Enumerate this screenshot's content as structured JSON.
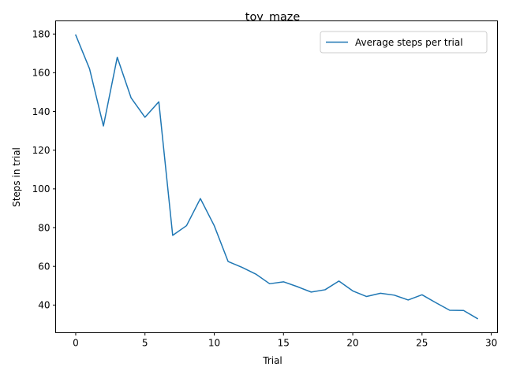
{
  "chart_data": {
    "type": "line",
    "title": "toy_maze",
    "xlabel": "Trial",
    "ylabel": "Steps in trial",
    "xlim": [
      -1.45,
      30.45
    ],
    "ylim": [
      25.7,
      186.8
    ],
    "xticks": [
      0,
      5,
      10,
      15,
      20,
      25,
      30
    ],
    "yticks": [
      40,
      60,
      80,
      100,
      120,
      140,
      160,
      180
    ],
    "grid": false,
    "legend_position": "top-right",
    "series": [
      {
        "name": "Average steps per trial",
        "color": "#1f77b4",
        "x": [
          0,
          1,
          2,
          3,
          4,
          5,
          6,
          7,
          8,
          9,
          10,
          11,
          12,
          13,
          14,
          15,
          16,
          17,
          18,
          19,
          20,
          21,
          22,
          23,
          24,
          25,
          26,
          27,
          28,
          29
        ],
        "y": [
          179.5,
          162,
          132.5,
          168,
          147,
          137,
          145,
          76,
          81,
          95,
          81,
          62.5,
          59.5,
          56,
          51,
          52,
          49.5,
          46.7,
          47.9,
          52.4,
          47.3,
          44.4,
          46.1,
          45.1,
          42.6,
          45.3,
          41.2,
          37.3,
          37.2,
          33
        ]
      }
    ]
  }
}
